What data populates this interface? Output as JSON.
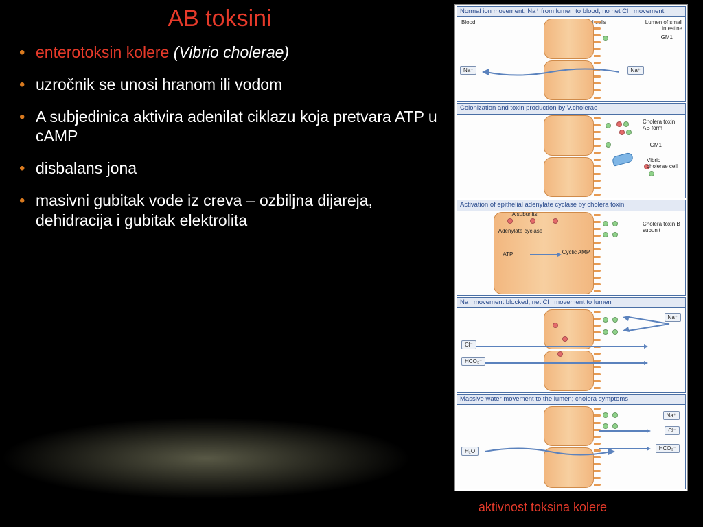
{
  "colors": {
    "bg": "#000000",
    "title": "#e63a2a",
    "bullet": "#d97a1f",
    "text": "#ffffff",
    "panel_border": "#4a6fa5",
    "panel_header_bg": "#e3e9f4",
    "panel_header_text": "#2a4b8d",
    "cell_fill": "#f7cfa0",
    "cell_border": "#d08b4a",
    "arrow": "#5b82bd",
    "dot_red": "#e46a6a",
    "dot_green": "#8fd28a",
    "vibrio": "#7fb6e6"
  },
  "title": "AB toksini",
  "bullets": [
    {
      "prefix": "enterotoksin kolere ",
      "italic": "(Vibrio cholerae)",
      "prefix_color": "#e63a2a",
      "italic_color": "#ffffff",
      "marker_color": "#d97a1f"
    },
    {
      "text": "uzročnik se unosi hranom ili vodom",
      "text_color": "#ffffff",
      "marker_color": "#d97a1f"
    },
    {
      "text": "A subjedinica aktivira adenilat ciklazu koja pretvara ATP u cAMP",
      "text_color": "#ffffff",
      "marker_color": "#d97a1f"
    },
    {
      "text": "disbalans jona",
      "text_color": "#ffffff",
      "marker_color": "#d97a1f"
    },
    {
      "text": "masivni gubitak vode iz creva – ozbiljna dijareja, dehidracija i gubitak elektrolita",
      "text_color": "#ffffff",
      "marker_color": "#d97a1f"
    }
  ],
  "caption": "aktivnost  toksina kolere",
  "diagram": {
    "panels": [
      {
        "header": "Normal ion movement, Na⁺ from lumen to blood, no net Cl⁻ movement",
        "zones": {
          "blood": "Blood",
          "cells": "Intestinal epithelial cells",
          "lumen": "Lumen of small intestine"
        },
        "tags": [
          "Na⁺",
          "Na⁺"
        ],
        "labels": [
          "GM1"
        ]
      },
      {
        "header": "Colonization and toxin production by V.cholerae",
        "labels": [
          "Cholera toxin AB form",
          "GM1",
          "Vibrio cholerae cell"
        ]
      },
      {
        "header": "Activation of epithelial adenylate cyclase by cholera toxin",
        "labels": [
          "A subunits",
          "Adenylate cyclase",
          "ATP",
          "Cyclic AMP",
          "Cholera toxin B subunit"
        ]
      },
      {
        "header": "Na⁺ movement blocked, net Cl⁻ movement to lumen",
        "tags": [
          "Na⁺",
          "Cl⁻",
          "HCO₃⁻"
        ]
      },
      {
        "header": "Massive water movement to the lumen; cholera symptoms",
        "tags": [
          "Na⁺",
          "Cl⁻",
          "HCO₃⁻",
          "H₂O"
        ]
      }
    ]
  }
}
